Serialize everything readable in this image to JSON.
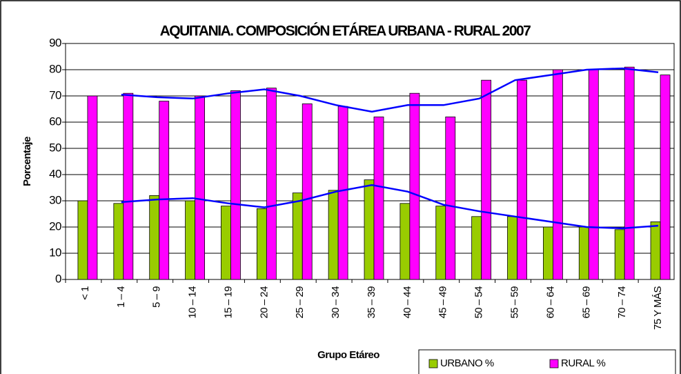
{
  "chart_data": {
    "type": "bar",
    "title": "AQUITANIA. COMPOSICIÓN ETÁREA URBANA - RURAL 2007",
    "x_label": "Grupo Etáreo",
    "y_label": "Porcentaje",
    "categories": [
      "< 1",
      "1 – 4",
      "5 – 9",
      "10 – 14",
      "15 – 19",
      "20 – 24",
      "25 – 29",
      "30 – 34",
      "35 – 39",
      "40 – 44",
      "45 – 49",
      "50 – 54",
      "55 – 59",
      "60 – 64",
      "65 – 69",
      "70 – 74",
      "75 Y MÁS"
    ],
    "series": [
      {
        "name": "URBANO %",
        "color": "#99cc00",
        "values": [
          30,
          29,
          32,
          30,
          28,
          27,
          33,
          34,
          38,
          29,
          28,
          24,
          24,
          20,
          20,
          19,
          22
        ]
      },
      {
        "name": "RURAL %",
        "color": "#ff00ff",
        "values": [
          70,
          71,
          68,
          70,
          72,
          73,
          67,
          66,
          62,
          71,
          62,
          76,
          76,
          80,
          80,
          81,
          78
        ]
      }
    ],
    "trendlines": [
      {
        "color": "#0000ff",
        "values": [
          null,
          29.5,
          30.5,
          31,
          29,
          27.5,
          30,
          33.5,
          36,
          33.5,
          28.5,
          26,
          24,
          22,
          20,
          19.5,
          20.5
        ]
      },
      {
        "color": "#0000ff",
        "values": [
          null,
          70.5,
          69.5,
          69,
          71,
          72.5,
          70,
          66.5,
          64,
          66.5,
          66.5,
          69,
          76,
          78,
          80,
          80.5,
          79
        ]
      }
    ],
    "ylim": [
      0,
      90
    ],
    "yticks": [
      0,
      10,
      20,
      30,
      40,
      50,
      60,
      70,
      80,
      90
    ],
    "grid": true,
    "legend": "bottom-right"
  }
}
